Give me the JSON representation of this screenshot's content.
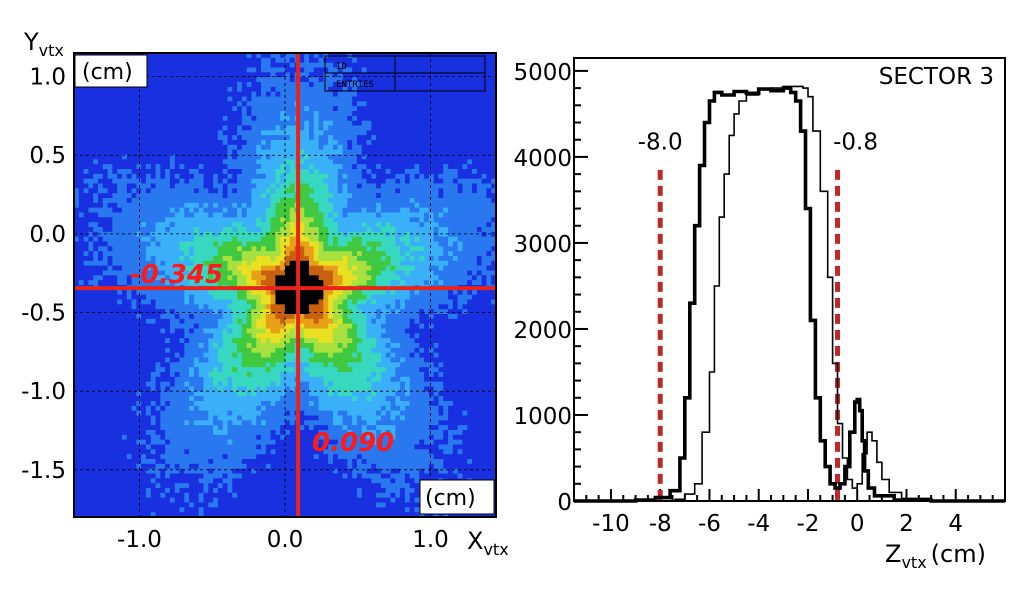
{
  "chart_data": [
    {
      "type": "heatmap",
      "xlabel_main": "X",
      "xlabel_sub": "vtx",
      "ylabel_main": "Y",
      "ylabel_sub": "vtx",
      "y_unit": "(cm)",
      "x_unit": "(cm)",
      "xlim": [
        -1.45,
        1.45
      ],
      "ylim": [
        -1.8,
        1.15
      ],
      "x_ticks": [
        {
          "value": -1.0,
          "label": "-1.0"
        },
        {
          "value": 0.0,
          "label": "0.0"
        },
        {
          "value": 1.0,
          "label": "1.0"
        }
      ],
      "y_ticks": [
        {
          "value": 1.0,
          "label": "1.0"
        },
        {
          "value": 0.5,
          "label": "0.5"
        },
        {
          "value": 0.0,
          "label": "0.0"
        },
        {
          "value": -0.5,
          "label": "-0.5"
        },
        {
          "value": -1.0,
          "label": "-1.0"
        },
        {
          "value": -1.5,
          "label": "-1.5"
        }
      ],
      "center_x": 0.09,
      "center_y": -0.345,
      "center_x_label": "0.090",
      "center_y_label": "-0.345",
      "stats_labels": [
        "ID",
        "ENTRIES"
      ],
      "grid": true,
      "palette": [
        "#1830e0",
        "#2a78f0",
        "#3ab0f8",
        "#38d8c0",
        "#40c840",
        "#a8e040",
        "#e8e020",
        "#e8a018",
        "#c86010",
        "#000000"
      ]
    },
    {
      "type": "line",
      "title": "SECTOR 3",
      "xlabel_main": "Z",
      "xlabel_sub": "vtx",
      "xlabel_unit": "(cm)",
      "xlim": [
        -11.5,
        6.0
      ],
      "ylim": [
        0,
        5150
      ],
      "x_ticks": [
        {
          "value": -10,
          "label": "-10"
        },
        {
          "value": -8,
          "label": "-8"
        },
        {
          "value": -6,
          "label": "-6"
        },
        {
          "value": -4,
          "label": "-4"
        },
        {
          "value": -2,
          "label": "-2"
        },
        {
          "value": 0,
          "label": "0"
        },
        {
          "value": 2,
          "label": "2"
        },
        {
          "value": 4,
          "label": "4"
        }
      ],
      "y_ticks": [
        {
          "value": 0,
          "label": "0"
        },
        {
          "value": 1000,
          "label": "1000"
        },
        {
          "value": 2000,
          "label": "2000"
        },
        {
          "value": 3000,
          "label": "3000"
        },
        {
          "value": 4000,
          "label": "4000"
        },
        {
          "value": 5000,
          "label": "5000"
        }
      ],
      "cuts": [
        {
          "value": -8.0,
          "label": "-8.0"
        },
        {
          "value": -0.8,
          "label": "-0.8"
        }
      ],
      "series": [
        {
          "style": "thick",
          "x": [
            -11.5,
            -9.0,
            -8.2,
            -7.6,
            -7.2,
            -7.0,
            -6.8,
            -6.6,
            -6.4,
            -6.2,
            -6.0,
            -5.8,
            -5.5,
            -5.0,
            -4.5,
            -4.0,
            -3.5,
            -3.0,
            -2.7,
            -2.5,
            -2.3,
            -2.1,
            -1.9,
            -1.7,
            -1.5,
            -1.3,
            -1.1,
            -0.9,
            -0.7,
            -0.5,
            -0.3,
            -0.1,
            0.0,
            0.1,
            0.2,
            0.3,
            0.45,
            0.7,
            1.5,
            3.0,
            6.0
          ],
          "y": [
            0,
            10,
            40,
            120,
            500,
            1200,
            2300,
            3200,
            3900,
            4400,
            4650,
            4750,
            4720,
            4760,
            4740,
            4790,
            4770,
            4800,
            4750,
            4650,
            4300,
            3400,
            2100,
            1200,
            700,
            400,
            200,
            150,
            200,
            400,
            800,
            1150,
            1180,
            1050,
            700,
            350,
            150,
            60,
            10,
            0,
            0
          ]
        },
        {
          "style": "thin",
          "x": [
            -11.5,
            -8.0,
            -7.4,
            -7.0,
            -6.6,
            -6.3,
            -6.0,
            -5.8,
            -5.6,
            -5.4,
            -5.2,
            -5.0,
            -4.8,
            -4.5,
            -4.0,
            -3.5,
            -3.0,
            -2.5,
            -2.2,
            -2.0,
            -1.8,
            -1.5,
            -1.2,
            -1.0,
            -0.8,
            -0.6,
            -0.4,
            -0.2,
            0.0,
            0.2,
            0.4,
            0.6,
            0.8,
            1.0,
            1.3,
            1.8,
            3.0,
            6.0
          ],
          "y": [
            0,
            0,
            20,
            80,
            200,
            800,
            1500,
            2500,
            3300,
            3800,
            4250,
            4500,
            4650,
            4720,
            4780,
            4800,
            4820,
            4820,
            4800,
            4700,
            4300,
            3600,
            2600,
            1600,
            900,
            500,
            250,
            150,
            200,
            550,
            800,
            700,
            450,
            250,
            100,
            30,
            0,
            0
          ]
        }
      ]
    }
  ]
}
